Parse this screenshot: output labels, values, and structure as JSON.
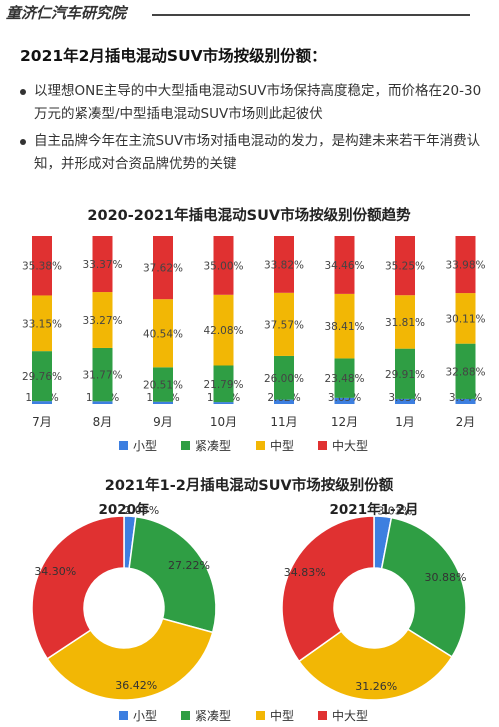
{
  "header": {
    "brand": "童济仁汽车研究院",
    "title": "2021年2月插电混动SUV市场按级别份额：",
    "bullets": [
      "以理想ONE主导的中大型插电混动SUV市场保持高度稳定，而价格在20-30万元的紧凑型/中型插电混动SUV市场则此起彼伏",
      "自主品牌今年在主流SUV市场对插电混动的发力，是构建未来若干年消费认知，并形成对合资品牌优势的关键"
    ]
  },
  "colors": {
    "small": "#3d7fe0",
    "compact": "#2f9e44",
    "mid": "#f2b705",
    "large": "#e03131"
  },
  "chart_data": [
    {
      "type": "bar",
      "stacked": true,
      "title": "2020-2021年插电混动SUV市场按级别份额趋势",
      "categories": [
        "7月",
        "8月",
        "9月",
        "10月",
        "11月",
        "12月",
        "1月",
        "2月"
      ],
      "series": [
        {
          "name": "小型",
          "values": [
            1.7,
            1.59,
            1.33,
            1.13,
            2.62,
            3.65,
            3.03,
            3.04
          ],
          "labels": [
            "1.70%",
            "1.59%",
            "1.33%",
            "1.13%",
            "2.62%",
            "3.65%",
            "3.03%",
            "3.04%"
          ]
        },
        {
          "name": "紧凑型",
          "values": [
            29.76,
            31.77,
            20.51,
            21.79,
            26.0,
            23.48,
            29.91,
            32.88
          ],
          "labels": [
            "29.76%",
            "31.77%",
            "20.51%",
            "21.79%",
            "26.00%",
            "23.48%",
            "29.91%",
            "32.88%"
          ]
        },
        {
          "name": "中型",
          "values": [
            33.15,
            33.27,
            40.54,
            42.08,
            37.57,
            38.41,
            31.81,
            30.11
          ],
          "labels": [
            "33.15%",
            "33.27%",
            "40.54%",
            "42.08%",
            "37.57%",
            "38.41%",
            "31.81%",
            "30.11%"
          ]
        },
        {
          "name": "中大型",
          "values": [
            35.38,
            33.37,
            37.62,
            35.0,
            33.82,
            34.46,
            35.25,
            33.98
          ],
          "labels": [
            "35.38%",
            "33.37%",
            "37.62%",
            "35.00%",
            "33.82%",
            "34.46%",
            "35.25%",
            "33.98%"
          ]
        }
      ],
      "ylim": [
        0,
        100
      ],
      "legend": "bottom"
    },
    {
      "type": "pie",
      "title": "2021年1-2月插电混动SUV市场按级别份额",
      "charts": [
        {
          "subtitle": "2020年",
          "labels": [
            "小型",
            "紧凑型",
            "中型",
            "中大型"
          ],
          "values": [
            2.05,
            27.22,
            36.42,
            34.3
          ],
          "value_labels": [
            "2.05%",
            "27.22%",
            "36.42%",
            "34.30%"
          ]
        },
        {
          "subtitle": "2021年1-2月",
          "labels": [
            "小型",
            "紧凑型",
            "中型",
            "中大型"
          ],
          "values": [
            3.03,
            30.88,
            31.26,
            34.83
          ],
          "value_labels": [
            "3.03%",
            "30.88%",
            "31.26%",
            "34.83%"
          ]
        }
      ],
      "legend": "bottom"
    }
  ]
}
